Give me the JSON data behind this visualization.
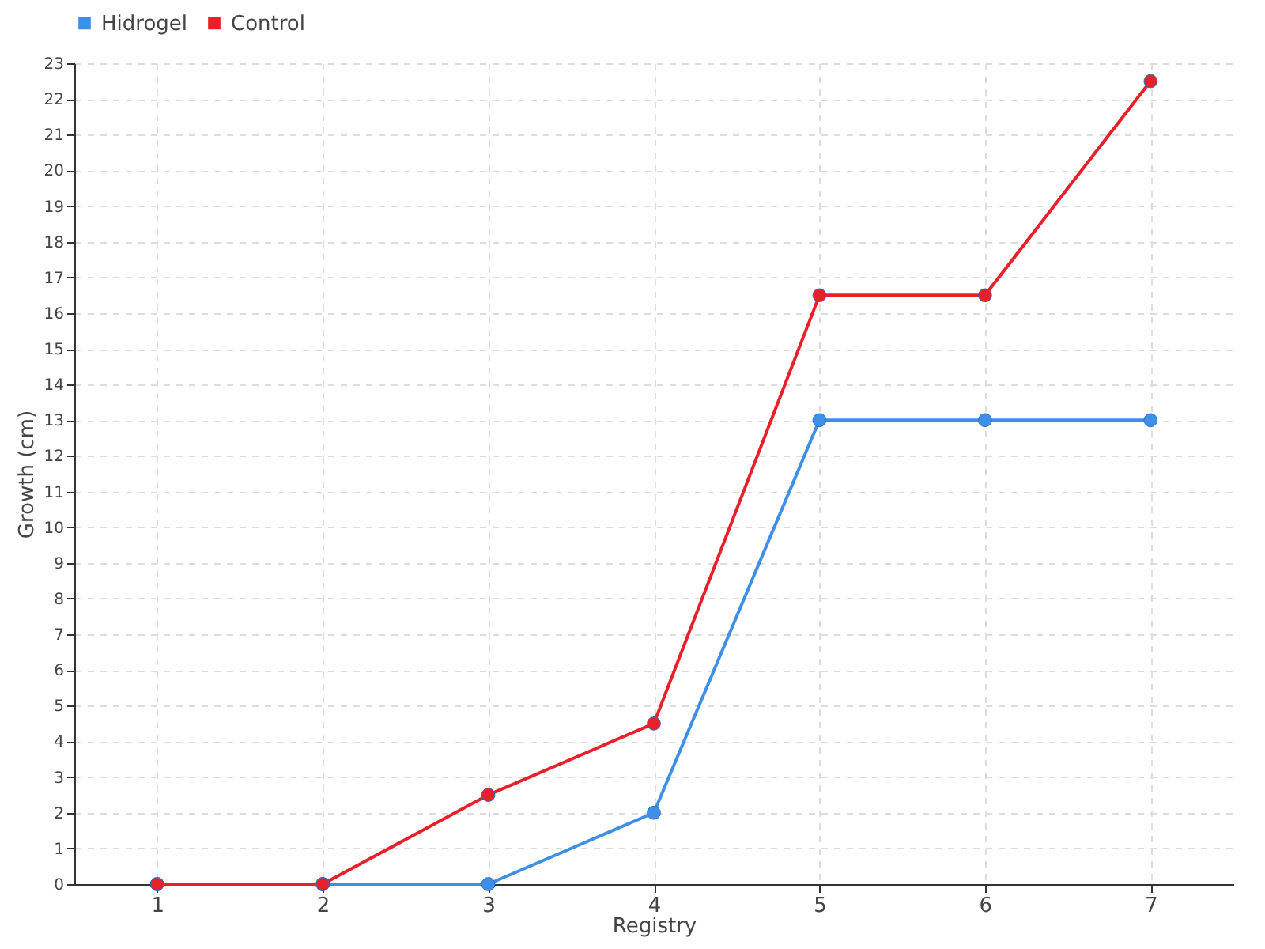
{
  "chart_data": {
    "type": "line",
    "xlabel": "Registry",
    "ylabel": "Growth (cm)",
    "categories": [
      "1",
      "2",
      "3",
      "4",
      "5",
      "6",
      "7"
    ],
    "series": [
      {
        "name": "Hidrogel",
        "color": "#3d8fe8",
        "values": [
          0,
          0,
          0,
          2,
          13,
          13,
          13
        ]
      },
      {
        "name": "Control",
        "color": "#e8202a",
        "values": [
          0,
          0,
          2.5,
          4.5,
          16.5,
          16.5,
          22.5
        ]
      }
    ],
    "ylim": [
      0,
      23
    ],
    "yticks": [
      0,
      1,
      2,
      3,
      4,
      5,
      6,
      7,
      8,
      9,
      10,
      11,
      12,
      13,
      14,
      15,
      16,
      17,
      18,
      19,
      20,
      21,
      22,
      23
    ],
    "grid": true,
    "legend": "top left",
    "marker": "circle",
    "line_style": "solid"
  }
}
